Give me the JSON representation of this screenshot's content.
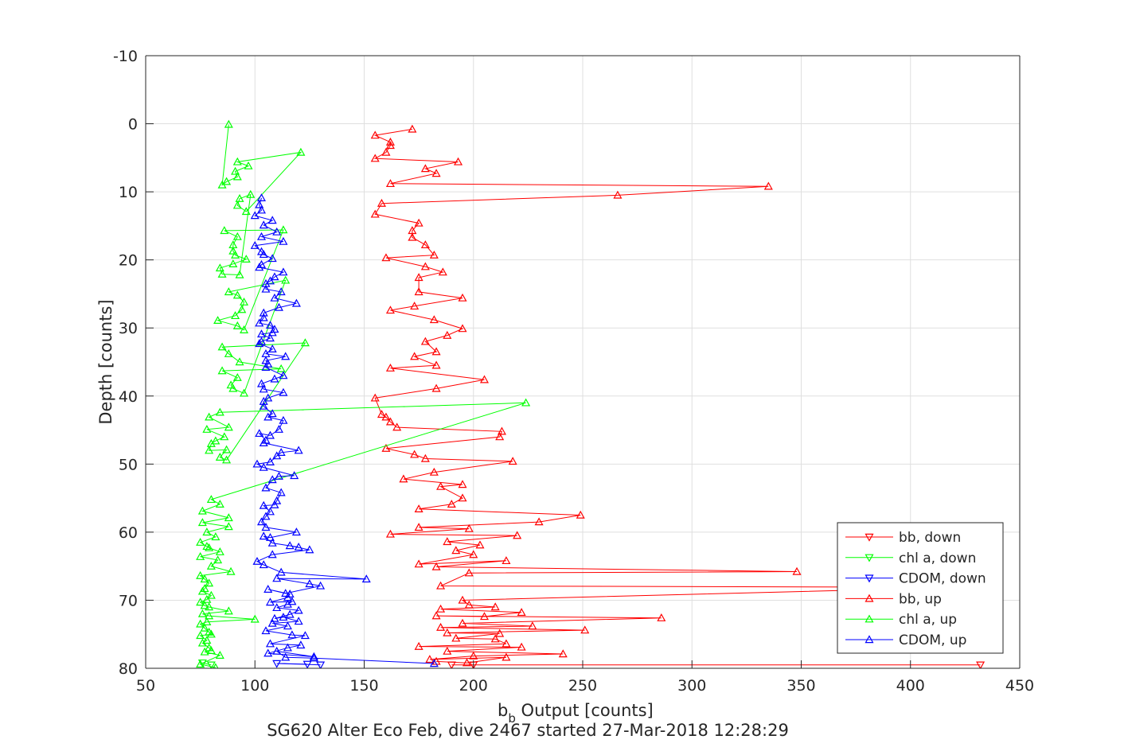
{
  "chart_data": {
    "type": "line",
    "xlabel": "b",
    "xlabel_subscript": "b",
    "xlabel_suffix": " Output [counts]",
    "ylabel": "Depth [counts]",
    "caption": "SG620 Alter Eco Feb, dive 2467 started 27-Mar-2018 12:28:29",
    "xlim": [
      50,
      450
    ],
    "ylim": [
      -10,
      80
    ],
    "y_reversed": true,
    "grid": true,
    "legend_position": "bottom-right",
    "x_ticks": [
      "50",
      "100",
      "150",
      "200",
      "250",
      "300",
      "350",
      "400",
      "450"
    ],
    "y_ticks": [
      "-10",
      "0",
      "10",
      "20",
      "30",
      "40",
      "50",
      "60",
      "70",
      "80"
    ],
    "series": [
      {
        "name": "bb, down",
        "color": "#ff0000",
        "marker": "triangle-down",
        "x": [
          432,
          200,
          190
        ],
        "y": [
          79.5,
          79.5,
          79.5
        ]
      },
      {
        "name": "chl a, down",
        "color": "#00ff00",
        "marker": "triangle-down",
        "x": [
          80,
          76
        ],
        "y": [
          79.5,
          79.2
        ]
      },
      {
        "name": "CDOM, down",
        "color": "#0000ff",
        "marker": "triangle-down",
        "x": [
          130,
          110,
          124
        ],
        "y": [
          79.5,
          79.3,
          79.4
        ]
      },
      {
        "name": "bb, up",
        "color": "#ff0000",
        "marker": "triangle-up",
        "x": [
          183,
          197,
          215,
          180,
          200,
          241,
          188,
          222,
          175,
          215,
          210,
          192,
          212,
          188,
          251,
          185,
          227,
          195,
          286,
          183,
          205,
          222,
          185,
          210,
          198,
          195,
          425,
          185,
          198,
          348,
          183,
          215,
          175,
          200,
          192,
          203,
          188,
          220,
          162,
          198,
          175,
          230,
          249,
          175,
          190,
          195,
          185,
          195,
          168,
          182,
          218,
          178,
          173,
          160,
          212,
          213,
          165,
          162,
          160,
          158,
          155,
          183,
          205,
          162,
          183,
          173,
          183,
          178,
          188,
          195,
          182,
          162,
          173,
          195,
          175,
          175,
          186,
          178,
          160,
          182,
          178,
          172,
          172,
          175,
          155,
          158,
          266,
          335,
          162,
          183,
          178,
          193,
          155,
          160,
          162,
          162,
          155,
          172
        ],
        "y": [
          79.0,
          79.2,
          78.4,
          78.7,
          78.2,
          77.9,
          77.5,
          76.9,
          76.8,
          76.4,
          75.7,
          75.6,
          74.9,
          74.8,
          74.4,
          74.0,
          73.8,
          73.4,
          72.6,
          72.3,
          72.4,
          71.8,
          71.3,
          71.0,
          70.7,
          70.0,
          68.1,
          67.9,
          66.0,
          65.8,
          65.1,
          64.2,
          64.7,
          63.3,
          62.7,
          61.9,
          61.4,
          60.5,
          60.3,
          59.5,
          59.3,
          58.5,
          57.5,
          56.6,
          55.9,
          55.0,
          53.3,
          53.0,
          52.2,
          51.2,
          49.6,
          49.2,
          48.6,
          47.7,
          46.0,
          45.2,
          44.6,
          43.8,
          43.1,
          42.7,
          40.3,
          38.9,
          37.6,
          35.9,
          35.5,
          34.2,
          33.5,
          32.0,
          31.1,
          30.1,
          28.8,
          27.4,
          26.8,
          25.6,
          24.7,
          22.6,
          21.8,
          21.0,
          19.7,
          19.3,
          17.8,
          16.7,
          15.7,
          14.6,
          13.3,
          11.7,
          10.5,
          9.2,
          8.8,
          7.3,
          6.6,
          5.6,
          5.1,
          4.2,
          3.2,
          2.7,
          1.7,
          0.8
        ]
      },
      {
        "name": "chl a, up",
        "color": "#00ff00",
        "marker": "triangle-up",
        "x": [
          82,
          75,
          84,
          77,
          80,
          79,
          76,
          78,
          75,
          80,
          79,
          77,
          75,
          78,
          100,
          79,
          76,
          88,
          79,
          77,
          75,
          78,
          80,
          76,
          77,
          79,
          77,
          75,
          89,
          80,
          83,
          75,
          84,
          79,
          78,
          75,
          82,
          78,
          88,
          76,
          88,
          76,
          84,
          80,
          224,
          84,
          79,
          88,
          78,
          86,
          82,
          80,
          79,
          87,
          84,
          87,
          123,
          85,
          88,
          93,
          112,
          85,
          92,
          89,
          90,
          95,
          114,
          88,
          92,
          95,
          94,
          91,
          83,
          92,
          95,
          113,
          86,
          92,
          90,
          90,
          91,
          96,
          90,
          84,
          85,
          93,
          98,
          93,
          92,
          96,
          121,
          92,
          97,
          91,
          92,
          87,
          85,
          88
        ],
        "y": [
          79.9,
          79.4,
          78.1,
          77.6,
          77.4,
          77.0,
          76.3,
          75.9,
          75.2,
          75.0,
          74.7,
          74.1,
          73.5,
          73.2,
          72.8,
          72.3,
          72.0,
          71.6,
          71.0,
          70.8,
          70.3,
          69.9,
          69.3,
          68.7,
          68.3,
          67.5,
          66.9,
          66.4,
          65.8,
          65.0,
          64.1,
          63.6,
          62.9,
          62.3,
          62.1,
          61.5,
          60.7,
          60.0,
          59.2,
          58.6,
          57.9,
          56.9,
          55.9,
          55.2,
          41.0,
          42.4,
          43.1,
          44.6,
          44.9,
          46.0,
          46.6,
          47.0,
          48.0,
          47.9,
          49.0,
          49.4,
          32.2,
          32.8,
          33.8,
          35.0,
          36.0,
          36.3,
          37.3,
          38.4,
          38.9,
          39.6,
          23.0,
          24.7,
          25.2,
          26.2,
          27.3,
          28.2,
          28.9,
          29.7,
          30.3,
          15.6,
          15.7,
          16.6,
          17.8,
          18.7,
          19.3,
          19.9,
          20.6,
          21.2,
          22.1,
          22.2,
          10.4,
          11.0,
          12.0,
          12.9,
          4.2,
          5.6,
          6.2,
          7.0,
          7.8,
          8.5,
          9.0,
          0.1
        ]
      },
      {
        "name": "CDOM, up",
        "color": "#0000ff",
        "marker": "triangle-up",
        "x": [
          182,
          127,
          114,
          110,
          127,
          106,
          115,
          121,
          107,
          123,
          117,
          105,
          115,
          108,
          120,
          113,
          109,
          116,
          120,
          110,
          115,
          117,
          107,
          115,
          116,
          106,
          114,
          130,
          125,
          110,
          151,
          112,
          104,
          101,
          108,
          125,
          116,
          120,
          108,
          104,
          107,
          119,
          105,
          103,
          105,
          107,
          104,
          109,
          110,
          112,
          105,
          108,
          111,
          118,
          104,
          101,
          107,
          110,
          112,
          120,
          104,
          105,
          102,
          107,
          111,
          113,
          106,
          108,
          104,
          104,
          106,
          113,
          104,
          103,
          109,
          113,
          105,
          106,
          105,
          114,
          105,
          108,
          102,
          103,
          107,
          103,
          108,
          109,
          107,
          102,
          104,
          104,
          111,
          119,
          109,
          112,
          105,
          105,
          107,
          109,
          113,
          102,
          103,
          108,
          104,
          103,
          100,
          113,
          103,
          110,
          104,
          108,
          100,
          103,
          102,
          103
        ],
        "y": [
          79.3,
          78.5,
          78.4,
          77.5,
          78.3,
          77.8,
          77.0,
          76.6,
          76.4,
          75.2,
          75.1,
          74.5,
          73.8,
          73.4,
          73.1,
          72.5,
          72.7,
          72.1,
          71.5,
          71.1,
          70.6,
          70.2,
          70.3,
          69.6,
          69.1,
          68.4,
          69.0,
          67.9,
          67.6,
          66.8,
          66.9,
          65.9,
          64.8,
          64.3,
          63.3,
          62.6,
          62.0,
          62.2,
          61.6,
          60.6,
          60.8,
          60.0,
          59.3,
          58.5,
          57.7,
          57.0,
          56.1,
          56.0,
          55.4,
          54.2,
          53.5,
          52.3,
          51.8,
          51.7,
          50.5,
          50.0,
          49.7,
          48.8,
          48.3,
          48.0,
          46.9,
          46.5,
          45.5,
          45.8,
          44.9,
          43.6,
          43.1,
          42.6,
          41.5,
          40.8,
          40.3,
          39.5,
          39.0,
          38.2,
          37.5,
          37.0,
          35.8,
          35.3,
          34.8,
          34.2,
          33.8,
          33.1,
          32.3,
          32.0,
          31.5,
          30.9,
          30.7,
          30.2,
          29.6,
          29.3,
          28.5,
          27.8,
          27.0,
          26.4,
          25.6,
          24.7,
          24.3,
          23.5,
          23.1,
          22.5,
          21.8,
          21.1,
          20.7,
          19.8,
          19.2,
          18.8,
          17.9,
          17.3,
          16.6,
          15.9,
          14.9,
          14.2,
          13.5,
          12.7,
          11.9,
          10.9
        ]
      }
    ]
  }
}
